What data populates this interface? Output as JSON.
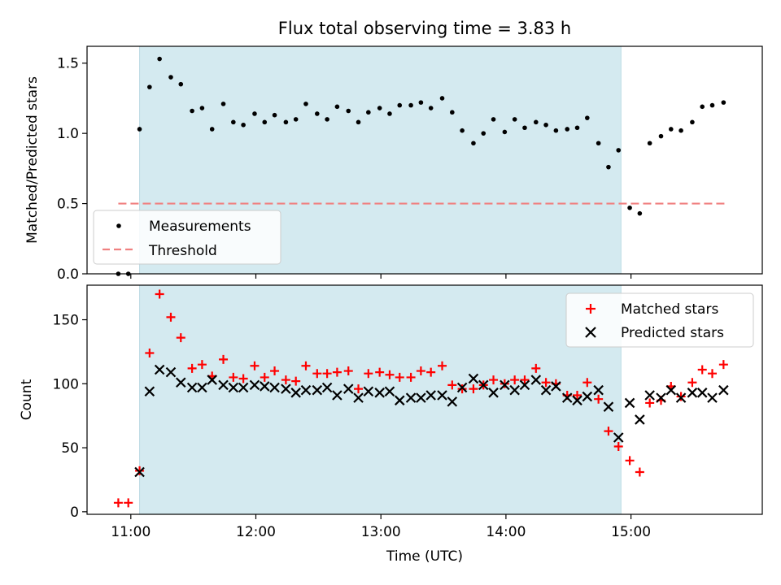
{
  "chart_data": [
    {
      "type": "scatter",
      "title": "Flux total observing time = 3.83 h",
      "xlabel": "",
      "ylabel": "Matched/Predicted stars",
      "xlim": [
        10.65,
        16.05
      ],
      "ylim": [
        0,
        1.62
      ],
      "yticks": [
        0.0,
        0.5,
        1.0,
        1.5
      ],
      "yticklabels": [
        "0.0",
        "0.5",
        "1.0",
        "1.5"
      ],
      "shaded_span": {
        "x_start": 11.07,
        "x_end": 14.92,
        "color": "#d4eaf0"
      },
      "threshold": {
        "name": "Threshold",
        "value": 0.5,
        "x_start": 10.9,
        "x_end": 15.75,
        "color": "#f08080"
      },
      "legend": {
        "position": "lower-left",
        "entries": [
          "Measurements",
          "Threshold"
        ]
      },
      "series": [
        {
          "name": "Measurements",
          "marker": "dot",
          "color": "#000000",
          "x": [
            10.9,
            10.98,
            11.07,
            11.15,
            11.23,
            11.32,
            11.4,
            11.49,
            11.57,
            11.65,
            11.74,
            11.82,
            11.9,
            11.99,
            12.07,
            12.15,
            12.24,
            12.32,
            12.4,
            12.49,
            12.57,
            12.65,
            12.74,
            12.82,
            12.9,
            12.99,
            13.07,
            13.15,
            13.24,
            13.32,
            13.4,
            13.49,
            13.57,
            13.65,
            13.74,
            13.82,
            13.9,
            13.99,
            14.07,
            14.15,
            14.24,
            14.32,
            14.4,
            14.49,
            14.57,
            14.65,
            14.74,
            14.82,
            14.9,
            14.99,
            15.07,
            15.15,
            15.24,
            15.32,
            15.4,
            15.49,
            15.57,
            15.65,
            15.74
          ],
          "y": [
            0.0,
            0.0,
            1.03,
            1.33,
            1.53,
            1.4,
            1.35,
            1.16,
            1.18,
            1.03,
            1.21,
            1.08,
            1.06,
            1.14,
            1.08,
            1.13,
            1.08,
            1.1,
            1.21,
            1.14,
            1.1,
            1.19,
            1.16,
            1.08,
            1.15,
            1.18,
            1.14,
            1.2,
            1.2,
            1.22,
            1.18,
            1.25,
            1.15,
            1.02,
            0.93,
            1.0,
            1.1,
            1.01,
            1.1,
            1.04,
            1.08,
            1.06,
            1.02,
            1.03,
            1.04,
            1.11,
            0.93,
            0.76,
            0.88,
            0.47,
            0.43,
            0.93,
            0.98,
            1.03,
            1.02,
            1.08,
            1.19,
            1.2,
            1.22
          ]
        }
      ]
    },
    {
      "type": "scatter",
      "title": "",
      "xlabel": "Time (UTC)",
      "ylabel": "Count",
      "xlim": [
        10.65,
        16.05
      ],
      "ylim": [
        -2,
        177
      ],
      "xticks": [
        11,
        12,
        13,
        14,
        15
      ],
      "xticklabels": [
        "11:00",
        "12:00",
        "13:00",
        "14:00",
        "15:00"
      ],
      "yticks": [
        0,
        50,
        100,
        150
      ],
      "yticklabels": [
        "0",
        "50",
        "100",
        "150"
      ],
      "shaded_span": {
        "x_start": 11.07,
        "x_end": 14.92,
        "color": "#d4eaf0"
      },
      "legend": {
        "position": "top-right",
        "entries": [
          "Matched stars",
          "Predicted stars"
        ]
      },
      "series": [
        {
          "name": "Matched stars",
          "marker": "plus",
          "color": "#ff0000",
          "x": [
            10.9,
            10.98,
            11.07,
            11.15,
            11.23,
            11.32,
            11.4,
            11.49,
            11.57,
            11.65,
            11.74,
            11.82,
            11.9,
            11.99,
            12.07,
            12.15,
            12.24,
            12.32,
            12.4,
            12.49,
            12.57,
            12.65,
            12.74,
            12.82,
            12.9,
            12.99,
            13.07,
            13.15,
            13.24,
            13.32,
            13.4,
            13.49,
            13.57,
            13.65,
            13.74,
            13.82,
            13.9,
            13.99,
            14.07,
            14.15,
            14.24,
            14.32,
            14.4,
            14.49,
            14.57,
            14.65,
            14.74,
            14.82,
            14.9,
            14.99,
            15.07,
            15.15,
            15.24,
            15.32,
            15.4,
            15.49,
            15.57,
            15.65,
            15.74
          ],
          "y": [
            7,
            7,
            32,
            124,
            170,
            152,
            136,
            112,
            115,
            106,
            119,
            105,
            104,
            114,
            105,
            110,
            103,
            102,
            114,
            108,
            108,
            109,
            110,
            96,
            108,
            109,
            107,
            105,
            105,
            110,
            109,
            114,
            99,
            96,
            96,
            99,
            103,
            100,
            103,
            103,
            112,
            101,
            100,
            91,
            91,
            101,
            88,
            63,
            51,
            40,
            31,
            85,
            87,
            98,
            90,
            101,
            111,
            108,
            115
          ]
        },
        {
          "name": "Predicted stars",
          "marker": "x",
          "color": "#000000",
          "x": [
            11.07,
            11.15,
            11.23,
            11.32,
            11.4,
            11.49,
            11.57,
            11.65,
            11.74,
            11.82,
            11.9,
            11.99,
            12.07,
            12.15,
            12.24,
            12.32,
            12.4,
            12.49,
            12.57,
            12.65,
            12.74,
            12.82,
            12.9,
            12.99,
            13.07,
            13.15,
            13.24,
            13.32,
            13.4,
            13.49,
            13.57,
            13.65,
            13.74,
            13.82,
            13.9,
            13.99,
            14.07,
            14.15,
            14.24,
            14.32,
            14.4,
            14.49,
            14.57,
            14.65,
            14.74,
            14.82,
            14.9,
            14.99,
            15.07,
            15.15,
            15.24,
            15.32,
            15.4,
            15.49,
            15.57,
            15.65,
            15.74
          ],
          "y": [
            31,
            94,
            111,
            109,
            101,
            97,
            97,
            103,
            99,
            97,
            97,
            99,
            98,
            97,
            96,
            93,
            95,
            95,
            97,
            91,
            96,
            89,
            94,
            93,
            94,
            87,
            89,
            89,
            91,
            91,
            86,
            97,
            104,
            99,
            93,
            99,
            95,
            99,
            103,
            95,
            98,
            89,
            87,
            90,
            95,
            82,
            58,
            85,
            72,
            91,
            89,
            95,
            89,
            93,
            93,
            89,
            95
          ]
        }
      ]
    }
  ]
}
